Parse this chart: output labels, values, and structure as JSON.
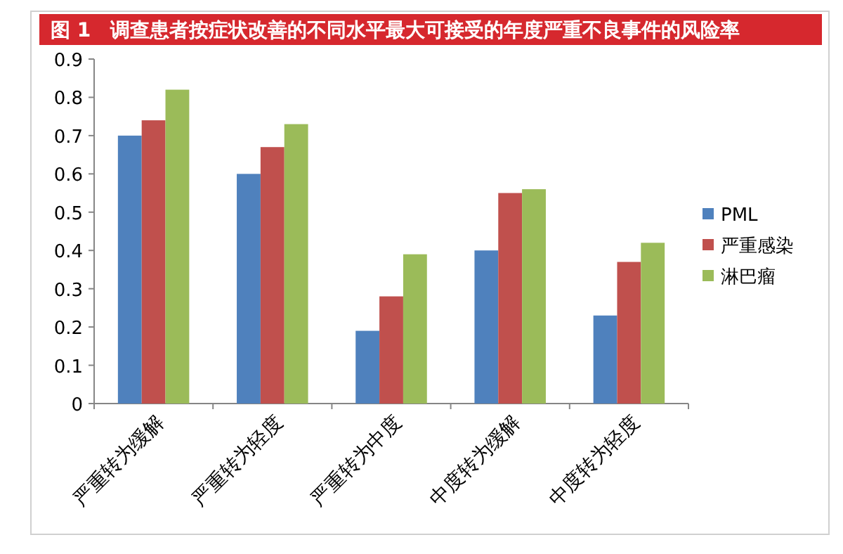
{
  "chart_data": {
    "type": "bar",
    "title": "图 1　调查患者按症状改善的不同水平最大可接受的年度严重不良事件的风险率",
    "categories": [
      "严重转为缓解",
      "严重转为轻度",
      "严重转为中度",
      "中度转为缓解",
      "中度转为轻度"
    ],
    "series": [
      {
        "name": "PML",
        "color": "#4f81bd",
        "values": [
          0.7,
          0.6,
          0.19,
          0.4,
          0.23
        ]
      },
      {
        "name": "严重感染",
        "color": "#c0504d",
        "values": [
          0.74,
          0.67,
          0.28,
          0.55,
          0.37
        ]
      },
      {
        "name": "淋巴瘤",
        "color": "#9bbb59",
        "values": [
          0.82,
          0.73,
          0.39,
          0.56,
          0.42
        ]
      }
    ],
    "ylim": [
      0,
      0.9
    ],
    "yticks": [
      0,
      0.1,
      0.2,
      0.3,
      0.4,
      0.5,
      0.6,
      0.7,
      0.8,
      0.9
    ],
    "legend": "right"
  }
}
